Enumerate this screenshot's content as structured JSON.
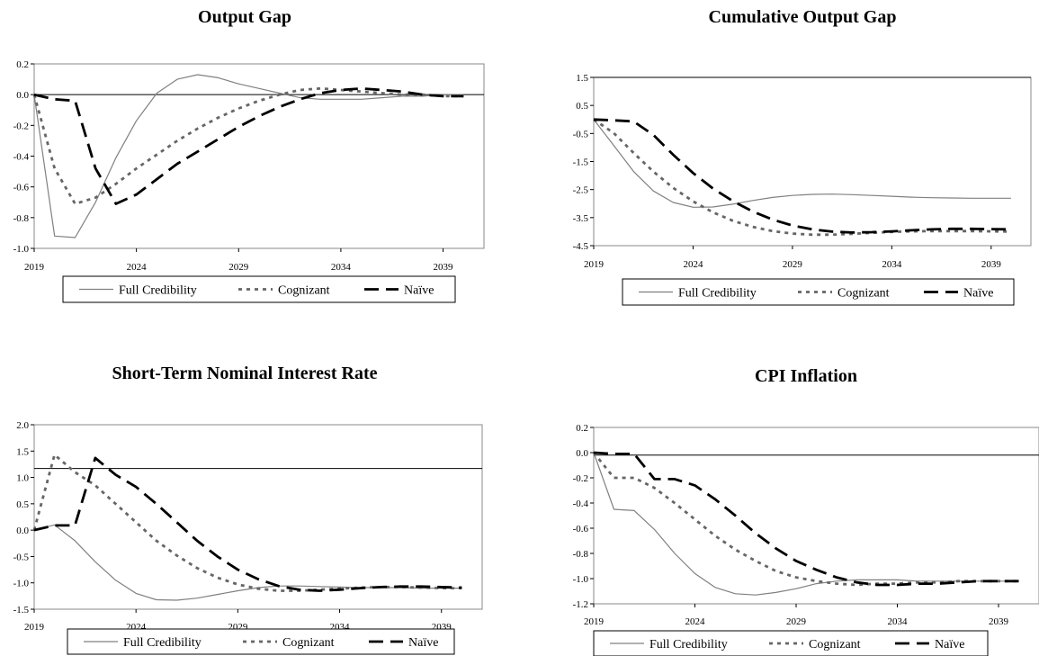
{
  "legend": [
    "Full Credibility",
    "Cognizant",
    "Naïve"
  ],
  "series_styles": {
    "Full Credibility": {
      "color": "#808080",
      "dash": "none",
      "width": 1.2
    },
    "Cognizant": {
      "color": "#666666",
      "dash": "4,5",
      "width": 2.8
    },
    "Naïve": {
      "color": "#000000",
      "dash": "16,8",
      "width": 2.8
    }
  },
  "chart_data": [
    {
      "type": "line",
      "title": "Output Gap",
      "x": [
        2019,
        2020,
        2021,
        2022,
        2023,
        2024,
        2025,
        2026,
        2027,
        2028,
        2029,
        2030,
        2031,
        2032,
        2033,
        2034,
        2035,
        2036,
        2037,
        2038,
        2039,
        2040
      ],
      "xticks": [
        2019,
        2024,
        2029,
        2034,
        2039
      ],
      "xlim": [
        2019,
        2041
      ],
      "ylim": [
        -1.0,
        0.2
      ],
      "yticks": [
        0.2,
        0.0,
        -0.2,
        -0.4,
        -0.6,
        -0.8,
        -1.0
      ],
      "ytick_labels": [
        "0.2",
        "0.0",
        "-0.2",
        "-0.4",
        "-0.6",
        "-0.8",
        "-1.0"
      ],
      "hline": 0,
      "series": [
        {
          "name": "Full Credibility",
          "values": [
            0.0,
            -0.92,
            -0.93,
            -0.7,
            -0.41,
            -0.17,
            0.01,
            0.1,
            0.13,
            0.11,
            0.07,
            0.04,
            0.01,
            -0.02,
            -0.03,
            -0.03,
            -0.03,
            -0.02,
            -0.01,
            -0.01,
            0.0,
            0.0
          ]
        },
        {
          "name": "Cognizant",
          "values": [
            0.0,
            -0.48,
            -0.71,
            -0.67,
            -0.58,
            -0.48,
            -0.39,
            -0.3,
            -0.22,
            -0.15,
            -0.09,
            -0.04,
            0.0,
            0.03,
            0.04,
            0.03,
            0.02,
            0.01,
            0.0,
            0.0,
            -0.01,
            -0.01
          ]
        },
        {
          "name": "Naïve",
          "values": [
            0.0,
            -0.03,
            -0.04,
            -0.48,
            -0.71,
            -0.65,
            -0.55,
            -0.45,
            -0.37,
            -0.29,
            -0.21,
            -0.14,
            -0.08,
            -0.03,
            0.01,
            0.03,
            0.04,
            0.03,
            0.02,
            0.0,
            -0.01,
            -0.01
          ]
        }
      ]
    },
    {
      "type": "line",
      "title": "Cumulative Output Gap",
      "x": [
        2019,
        2020,
        2021,
        2022,
        2023,
        2024,
        2025,
        2026,
        2027,
        2028,
        2029,
        2030,
        2031,
        2032,
        2033,
        2034,
        2035,
        2036,
        2037,
        2038,
        2039,
        2040
      ],
      "xticks": [
        2019,
        2024,
        2029,
        2034,
        2039
      ],
      "xlim": [
        2019,
        2041
      ],
      "ylim": [
        -4.5,
        1.5
      ],
      "yticks": [
        1.5,
        0.5,
        -0.5,
        -1.5,
        -2.5,
        -3.5,
        -4.5
      ],
      "ytick_labels": [
        "1.5",
        "0.5",
        "-0.5",
        "-1.5",
        "-2.5",
        "-3.5",
        "-4.5"
      ],
      "hline": 1.5,
      "series": [
        {
          "name": "Full Credibility",
          "values": [
            0.0,
            -0.92,
            -1.85,
            -2.55,
            -2.96,
            -3.13,
            -3.12,
            -3.02,
            -2.89,
            -2.78,
            -2.71,
            -2.67,
            -2.66,
            -2.68,
            -2.71,
            -2.74,
            -2.77,
            -2.79,
            -2.8,
            -2.81,
            -2.81,
            -2.81
          ]
        },
        {
          "name": "Cognizant",
          "values": [
            0.0,
            -0.48,
            -1.19,
            -1.86,
            -2.44,
            -2.92,
            -3.31,
            -3.61,
            -3.83,
            -3.98,
            -4.07,
            -4.11,
            -4.11,
            -4.08,
            -4.04,
            -4.01,
            -3.99,
            -3.98,
            -3.98,
            -3.98,
            -3.99,
            -4.0
          ]
        },
        {
          "name": "Naïve",
          "values": [
            0.0,
            -0.03,
            -0.07,
            -0.55,
            -1.26,
            -1.91,
            -2.46,
            -2.91,
            -3.28,
            -3.57,
            -3.78,
            -3.92,
            -4.0,
            -4.03,
            -4.02,
            -3.99,
            -3.95,
            -3.92,
            -3.9,
            -3.9,
            -3.91,
            -3.92
          ]
        }
      ]
    },
    {
      "type": "line",
      "title": "Short-Term Nominal Interest Rate",
      "x": [
        2019,
        2020,
        2021,
        2022,
        2023,
        2024,
        2025,
        2026,
        2027,
        2028,
        2029,
        2030,
        2031,
        2032,
        2033,
        2034,
        2035,
        2036,
        2037,
        2038,
        2039,
        2040
      ],
      "xticks": [
        2019,
        2024,
        2029,
        2034,
        2039
      ],
      "xlim": [
        2019,
        2041
      ],
      "ylim": [
        -1.5,
        2.0
      ],
      "yticks": [
        2.0,
        1.5,
        1.0,
        0.5,
        0.0,
        -0.5,
        -1.0,
        -1.5
      ],
      "ytick_labels": [
        "2.0",
        "1.5",
        "1.0",
        "0.5",
        "0.0",
        "-0.5",
        "-1.0",
        "-1.5"
      ],
      "hline": 1.17,
      "series": [
        {
          "name": "Full Credibility",
          "values": [
            0.0,
            0.1,
            -0.2,
            -0.6,
            -0.95,
            -1.2,
            -1.32,
            -1.33,
            -1.29,
            -1.22,
            -1.15,
            -1.09,
            -1.06,
            -1.06,
            -1.07,
            -1.08,
            -1.09,
            -1.09,
            -1.09,
            -1.1,
            -1.1,
            -1.1
          ]
        },
        {
          "name": "Cognizant",
          "values": [
            0.0,
            1.43,
            1.1,
            0.85,
            0.5,
            0.15,
            -0.2,
            -0.48,
            -0.72,
            -0.9,
            -1.03,
            -1.11,
            -1.15,
            -1.15,
            -1.13,
            -1.11,
            -1.09,
            -1.08,
            -1.08,
            -1.09,
            -1.1,
            -1.1
          ]
        },
        {
          "name": "Naïve",
          "values": [
            0.0,
            0.09,
            0.09,
            1.37,
            1.05,
            0.82,
            0.5,
            0.15,
            -0.2,
            -0.5,
            -0.75,
            -0.93,
            -1.06,
            -1.13,
            -1.15,
            -1.13,
            -1.1,
            -1.08,
            -1.07,
            -1.07,
            -1.08,
            -1.09
          ]
        }
      ]
    },
    {
      "type": "line",
      "title": "CPI Inflation",
      "x": [
        2019,
        2020,
        2021,
        2022,
        2023,
        2024,
        2025,
        2026,
        2027,
        2028,
        2029,
        2030,
        2031,
        2032,
        2033,
        2034,
        2035,
        2036,
        2037,
        2038,
        2039,
        2040
      ],
      "xticks": [
        2019,
        2024,
        2029,
        2034,
        2039
      ],
      "xlim": [
        2019,
        2041
      ],
      "ylim": [
        -1.2,
        0.2
      ],
      "yticks": [
        0.2,
        0.0,
        -0.2,
        -0.4,
        -0.6,
        -0.8,
        -1.0,
        -1.2
      ],
      "ytick_labels": [
        "0.2",
        "0.0",
        "-0.2",
        "-0.4",
        "-0.6",
        "-0.8",
        "-1.0",
        "-1.2"
      ],
      "hline": -0.02,
      "series": [
        {
          "name": "Full Credibility",
          "values": [
            0.0,
            -0.45,
            -0.46,
            -0.61,
            -0.8,
            -0.96,
            -1.07,
            -1.12,
            -1.13,
            -1.11,
            -1.08,
            -1.04,
            -1.02,
            -1.01,
            -1.01,
            -1.01,
            -1.02,
            -1.02,
            -1.02,
            -1.02,
            -1.02,
            -1.02
          ]
        },
        {
          "name": "Cognizant",
          "values": [
            0.0,
            -0.2,
            -0.2,
            -0.28,
            -0.4,
            -0.53,
            -0.66,
            -0.77,
            -0.86,
            -0.94,
            -0.99,
            -1.02,
            -1.04,
            -1.05,
            -1.04,
            -1.04,
            -1.03,
            -1.03,
            -1.02,
            -1.02,
            -1.02,
            -1.02
          ]
        },
        {
          "name": "Naïve",
          "values": [
            0.0,
            -0.01,
            -0.01,
            -0.21,
            -0.21,
            -0.26,
            -0.37,
            -0.5,
            -0.64,
            -0.76,
            -0.86,
            -0.93,
            -0.99,
            -1.03,
            -1.05,
            -1.05,
            -1.04,
            -1.04,
            -1.03,
            -1.02,
            -1.02,
            -1.02
          ]
        }
      ]
    }
  ]
}
